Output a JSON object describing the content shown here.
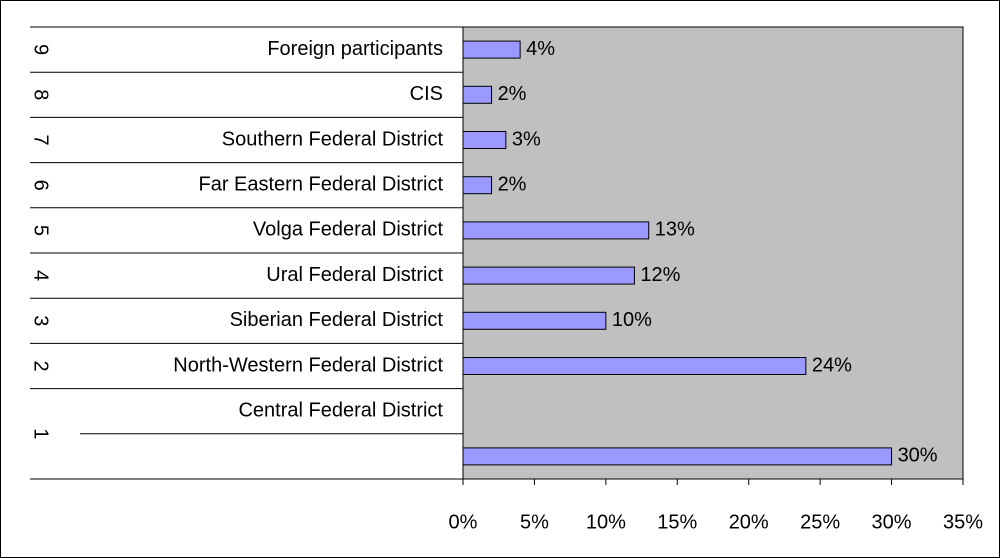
{
  "chart_data": {
    "type": "bar",
    "orientation": "horizontal",
    "groups": [
      "1",
      "2",
      "3",
      "4",
      "5",
      "6",
      "7",
      "8",
      "9"
    ],
    "categories": [
      "Central Federal District",
      "North-Western Federal District",
      "Siberian Federal District",
      "Ural Federal District",
      "Volga Federal District",
      "Far Eastern Federal District",
      "Southern Federal District",
      "CIS",
      "Foreign participants"
    ],
    "values": [
      30,
      24,
      10,
      12,
      13,
      2,
      3,
      2,
      4
    ],
    "value_labels": [
      "30%",
      "24%",
      "10%",
      "12%",
      "13%",
      "2%",
      "3%",
      "2%",
      "4%"
    ],
    "color": "#9999ff",
    "plot_background": "#c0c0c0",
    "xlim": [
      0,
      35
    ],
    "xticks": [
      {
        "value": 0,
        "label": "0%"
      },
      {
        "value": 5,
        "label": "5%"
      },
      {
        "value": 10,
        "label": "10%"
      },
      {
        "value": 15,
        "label": "15%"
      },
      {
        "value": 20,
        "label": "20%"
      },
      {
        "value": 25,
        "label": "25%"
      },
      {
        "value": 30,
        "label": "30%"
      },
      {
        "value": 35,
        "label": "35%"
      }
    ]
  }
}
